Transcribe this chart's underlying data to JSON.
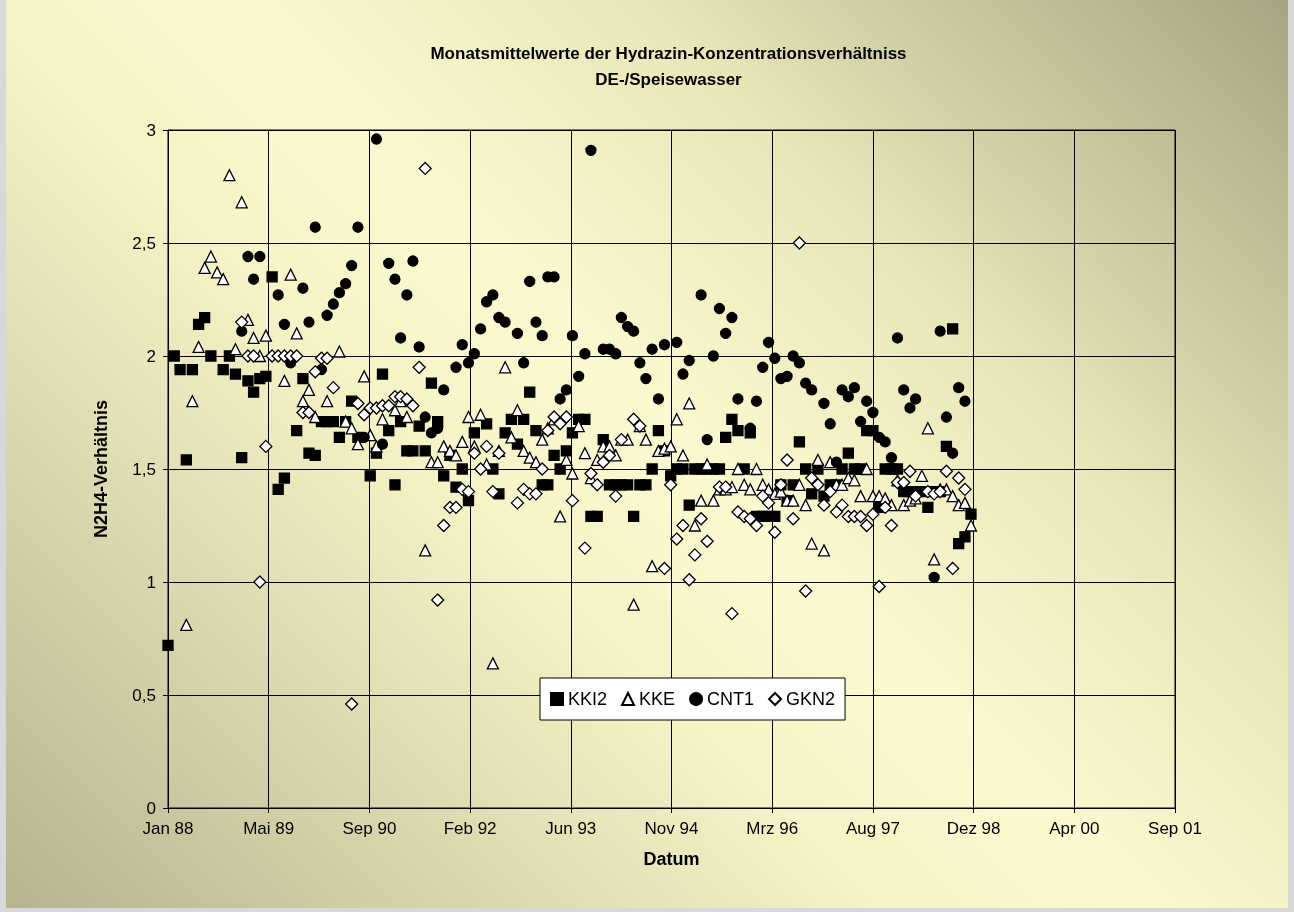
{
  "chart_data": {
    "type": "scatter",
    "title": "Monatsmittelwerte der Hydrazin-Konzentrationsverhältniss",
    "subtitle": "DE-/Speisewasser",
    "xlabel": "Datum",
    "ylabel": "N2H4-Verhältnis",
    "xlim": [
      "1988-01-01",
      "2001-09-09"
    ],
    "xticks": [
      {
        "value": "1988-01-01",
        "label": "Jan 88"
      },
      {
        "value": "1989-05-15",
        "label": "Mai 89"
      },
      {
        "value": "1990-09-27",
        "label": "Sep 90"
      },
      {
        "value": "1992-02-09",
        "label": "Feb 92"
      },
      {
        "value": "1993-06-23",
        "label": "Jun 93"
      },
      {
        "value": "1994-11-05",
        "label": "Nov 94"
      },
      {
        "value": "1996-03-19",
        "label": "Mrz 96"
      },
      {
        "value": "1997-08-01",
        "label": "Aug 97"
      },
      {
        "value": "1998-12-14",
        "label": "Dez 98"
      },
      {
        "value": "2000-04-27",
        "label": "Apr 00"
      },
      {
        "value": "2001-09-09",
        "label": "Sep 01"
      }
    ],
    "ylim": [
      0,
      3
    ],
    "yticks": [
      0,
      {
        "value": 0.5,
        "label": "0,5"
      },
      1,
      {
        "value": 1.5,
        "label": "1,5"
      },
      2,
      {
        "value": 2.5,
        "label": "2,5"
      },
      3
    ],
    "grid": true,
    "legend": "bottom",
    "series": [
      {
        "name": "KKI2",
        "color": "#000000",
        "marker": "square",
        "x": [
          "1988-01",
          "1988-02",
          "1988-03",
          "1988-04",
          "1988-05",
          "1988-06",
          "1988-07",
          "1988-08",
          "1988-10",
          "1988-11",
          "1988-12",
          "1989-01",
          "1989-02",
          "1989-03",
          "1989-04",
          "1989-05",
          "1989-06",
          "1989-07",
          "1989-08",
          "1989-10",
          "1989-11",
          "1989-12",
          "1990-01",
          "1990-02",
          "1990-03",
          "1990-04",
          "1990-05",
          "1990-06",
          "1990-07",
          "1990-08",
          "1990-10",
          "1990-11",
          "1990-12",
          "1991-01",
          "1991-02",
          "1991-03",
          "1991-04",
          "1991-05",
          "1991-06",
          "1991-07",
          "1991-08",
          "1991-09",
          "1991-10",
          "1991-11",
          "1991-12",
          "1992-01",
          "1992-02",
          "1992-03",
          "1992-05",
          "1992-06",
          "1992-07",
          "1992-08",
          "1992-09",
          "1992-10",
          "1992-11",
          "1992-12",
          "1993-01",
          "1993-02",
          "1993-03",
          "1993-04",
          "1993-05",
          "1993-06",
          "1993-07",
          "1993-08",
          "1993-09",
          "1993-10",
          "1993-11",
          "1993-12",
          "1994-01",
          "1994-02",
          "1994-03",
          "1994-04",
          "1994-05",
          "1994-06",
          "1994-07",
          "1994-08",
          "1994-09",
          "1994-10",
          "1994-11",
          "1994-12",
          "1995-01",
          "1995-02",
          "1995-03",
          "1995-04",
          "1995-05",
          "1995-06",
          "1995-07",
          "1995-08",
          "1995-09",
          "1995-10",
          "1995-11",
          "1995-12",
          "1996-01",
          "1996-02",
          "1996-03",
          "1996-04",
          "1996-05",
          "1996-06",
          "1996-07",
          "1996-08",
          "1996-09",
          "1996-10",
          "1996-11",
          "1996-12",
          "1997-01",
          "1997-02",
          "1997-03",
          "1997-04",
          "1997-05",
          "1997-06",
          "1997-07",
          "1997-08",
          "1997-09",
          "1997-10",
          "1997-11",
          "1997-12",
          "1998-01",
          "1998-02",
          "1998-03",
          "1998-04",
          "1998-05",
          "1998-06",
          "1998-07",
          "1998-08",
          "1998-09",
          "1998-10",
          "1998-11",
          "1998-12"
        ],
        "values": [
          0.72,
          2.0,
          1.94,
          1.54,
          1.94,
          2.14,
          2.17,
          2.0,
          1.94,
          2.0,
          1.92,
          1.55,
          1.89,
          1.84,
          1.9,
          1.91,
          2.35,
          1.41,
          1.46,
          1.67,
          1.9,
          1.57,
          1.56,
          1.71,
          1.71,
          1.71,
          1.64,
          1.71,
          1.8,
          1.64,
          1.47,
          1.57,
          1.92,
          1.67,
          1.43,
          1.71,
          1.58,
          1.58,
          1.69,
          1.58,
          1.88,
          1.71,
          1.47,
          1.56,
          1.42,
          1.5,
          1.36,
          1.66,
          1.7,
          1.5,
          1.39,
          1.66,
          1.72,
          1.61,
          1.72,
          1.84,
          1.67,
          1.43,
          1.43,
          1.56,
          1.5,
          1.58,
          1.66,
          1.72,
          1.72,
          1.29,
          1.29,
          1.63,
          1.43,
          1.43,
          1.43,
          1.43,
          1.29,
          1.43,
          1.43,
          1.5,
          1.67,
          1.58,
          1.47,
          1.5,
          1.5,
          1.34,
          1.5,
          1.5,
          1.5,
          1.5,
          1.5,
          1.64,
          1.72,
          1.67,
          1.5,
          1.66,
          1.29,
          1.29,
          1.29,
          1.29,
          1.43,
          1.36,
          1.43,
          1.62,
          1.5,
          1.39,
          1.5,
          1.38,
          1.43,
          1.43,
          1.5,
          1.57,
          1.5,
          1.5,
          1.67,
          1.67,
          1.33,
          1.5,
          1.5,
          1.5,
          1.4,
          1.4,
          1.4,
          1.4,
          1.33,
          1.4,
          1.4,
          1.6,
          2.12,
          1.17,
          1.2,
          1.3
        ]
      },
      {
        "name": "KKE",
        "color": "#ffffff",
        "marker": "triangle",
        "x": [
          "1988-04",
          "1988-05",
          "1988-06",
          "1988-07",
          "1988-08",
          "1988-09",
          "1988-10",
          "1988-11",
          "1988-12",
          "1989-01",
          "1989-02",
          "1989-03",
          "1989-04",
          "1989-05",
          "1989-08",
          "1989-09",
          "1989-10",
          "1989-11",
          "1989-12",
          "1990-01",
          "1990-03",
          "1990-05",
          "1990-06",
          "1990-07",
          "1990-08",
          "1990-09",
          "1990-10",
          "1990-11",
          "1990-12",
          "1991-02",
          "1991-03",
          "1991-04",
          "1991-07",
          "1991-08",
          "1991-09",
          "1991-10",
          "1991-11",
          "1991-12",
          "1992-01",
          "1992-02",
          "1992-03",
          "1992-04",
          "1992-05",
          "1992-06",
          "1992-07",
          "1992-08",
          "1992-09",
          "1992-10",
          "1992-11",
          "1992-12",
          "1993-01",
          "1993-02",
          "1993-03",
          "1993-04",
          "1993-05",
          "1993-06",
          "1993-07",
          "1993-08",
          "1993-09",
          "1993-10",
          "1993-11",
          "1993-12",
          "1994-01",
          "1994-02",
          "1994-03",
          "1994-04",
          "1994-05",
          "1994-06",
          "1994-07",
          "1994-08",
          "1994-09",
          "1994-10",
          "1994-11",
          "1994-12",
          "1995-01",
          "1995-02",
          "1995-03",
          "1995-04",
          "1995-05",
          "1995-06",
          "1995-07",
          "1995-08",
          "1995-09",
          "1995-10",
          "1995-11",
          "1995-12",
          "1996-01",
          "1996-02",
          "1996-03",
          "1996-04",
          "1996-05",
          "1996-06",
          "1996-07",
          "1996-08",
          "1996-09",
          "1996-10",
          "1996-11",
          "1996-12",
          "1997-01",
          "1997-02",
          "1997-03",
          "1997-04",
          "1997-05",
          "1997-06",
          "1997-07",
          "1997-08",
          "1997-09",
          "1997-10",
          "1997-11",
          "1997-12",
          "1998-01",
          "1998-02",
          "1998-03",
          "1998-04",
          "1998-05",
          "1998-06",
          "1998-07",
          "1998-08",
          "1998-09",
          "1998-10",
          "1998-11",
          "1998-12"
        ],
        "values": [
          0.81,
          1.8,
          2.04,
          2.39,
          2.44,
          2.37,
          2.34,
          2.8,
          2.03,
          2.68,
          2.16,
          2.08,
          2.0,
          2.09,
          1.89,
          2.36,
          2.1,
          1.8,
          1.85,
          1.73,
          1.8,
          2.02,
          1.71,
          1.68,
          1.61,
          1.91,
          1.65,
          1.6,
          1.72,
          1.76,
          1.8,
          1.73,
          1.14,
          1.53,
          1.53,
          1.6,
          1.58,
          1.56,
          1.62,
          1.73,
          1.6,
          1.74,
          1.52,
          0.64,
          1.58,
          1.95,
          1.64,
          1.76,
          1.58,
          1.55,
          1.53,
          1.63,
          1.68,
          1.72,
          1.29,
          1.54,
          1.48,
          1.69,
          1.57,
          1.46,
          1.54,
          1.6,
          1.6,
          1.56,
          1.63,
          1.63,
          0.9,
          1.69,
          1.63,
          1.07,
          1.58,
          1.59,
          1.6,
          1.72,
          1.56,
          1.79,
          1.25,
          1.36,
          1.52,
          1.36,
          1.41,
          1.41,
          1.42,
          1.5,
          1.43,
          1.41,
          1.5,
          1.43,
          1.41,
          1.39,
          1.4,
          1.36,
          1.36,
          1.43,
          1.34,
          1.17,
          1.54,
          1.14,
          1.53,
          1.43,
          1.43,
          1.46,
          1.45,
          1.38,
          1.5,
          1.38,
          1.38,
          1.37,
          1.34,
          1.45,
          1.34,
          1.36,
          1.37,
          1.47,
          1.68,
          1.1,
          1.41,
          1.41,
          1.38,
          1.34,
          1.35,
          1.25
        ]
      },
      {
        "name": "CNT1",
        "color": "#000000",
        "marker": "circle",
        "x": [
          "1989-01",
          "1989-02",
          "1989-03",
          "1989-04",
          "1989-07",
          "1989-08",
          "1989-09",
          "1989-11",
          "1989-12",
          "1990-01",
          "1990-02",
          "1990-03",
          "1990-04",
          "1990-05",
          "1990-06",
          "1990-07",
          "1990-08",
          "1990-09",
          "1990-11",
          "1990-12",
          "1991-01",
          "1991-02",
          "1991-03",
          "1991-04",
          "1991-05",
          "1991-06",
          "1991-07",
          "1991-08",
          "1991-09",
          "1991-10",
          "1991-12",
          "1992-01",
          "1992-02",
          "1992-03",
          "1992-04",
          "1992-05",
          "1992-06",
          "1992-07",
          "1992-08",
          "1992-10",
          "1992-11",
          "1992-12",
          "1993-01",
          "1993-02",
          "1993-03",
          "1993-04",
          "1993-05",
          "1993-06",
          "1993-07",
          "1993-08",
          "1993-09",
          "1993-10",
          "1993-12",
          "1994-01",
          "1994-02",
          "1994-03",
          "1994-04",
          "1994-05",
          "1994-06",
          "1994-07",
          "1994-08",
          "1994-09",
          "1994-10",
          "1994-12",
          "1995-01",
          "1995-02",
          "1995-04",
          "1995-05",
          "1995-06",
          "1995-07",
          "1995-08",
          "1995-09",
          "1995-10",
          "1995-12",
          "1996-01",
          "1996-02",
          "1996-03",
          "1996-04",
          "1996-05",
          "1996-06",
          "1996-07",
          "1996-08",
          "1996-09",
          "1996-10",
          "1996-12",
          "1997-01",
          "1997-02",
          "1997-03",
          "1997-04",
          "1997-05",
          "1997-06",
          "1997-07",
          "1997-08",
          "1997-09",
          "1997-10",
          "1997-11",
          "1997-12",
          "1998-01",
          "1998-02",
          "1998-03",
          "1998-06",
          "1998-07",
          "1998-08",
          "1998-09",
          "1998-10",
          "1998-11"
        ],
        "values": [
          2.11,
          2.44,
          2.34,
          2.44,
          2.27,
          2.14,
          1.97,
          2.3,
          2.15,
          2.57,
          1.94,
          2.18,
          2.23,
          2.28,
          2.32,
          2.4,
          2.57,
          1.64,
          2.96,
          1.61,
          2.41,
          2.34,
          2.08,
          2.27,
          2.42,
          2.04,
          1.73,
          1.66,
          1.68,
          1.85,
          1.95,
          2.05,
          1.97,
          2.01,
          2.12,
          2.24,
          2.27,
          2.17,
          2.15,
          2.1,
          1.97,
          2.33,
          2.15,
          2.09,
          2.35,
          2.35,
          1.81,
          1.85,
          2.09,
          1.91,
          2.01,
          2.91,
          2.03,
          2.03,
          2.01,
          2.17,
          2.13,
          2.11,
          1.97,
          1.9,
          2.03,
          1.81,
          2.05,
          2.06,
          1.92,
          1.98,
          2.27,
          1.63,
          2.0,
          2.21,
          2.1,
          2.17,
          1.81,
          1.68,
          1.8,
          1.95,
          2.06,
          1.99,
          1.9,
          1.91,
          2.0,
          1.97,
          1.88,
          1.85,
          1.79,
          1.7,
          1.53,
          1.85,
          1.82,
          1.86,
          1.71,
          1.8,
          1.75,
          1.64,
          1.62,
          1.55,
          2.08,
          1.85,
          1.77,
          1.81,
          1.02,
          2.11,
          1.73,
          1.57,
          1.86,
          1.8
        ]
      },
      {
        "name": "GKN2",
        "color": "#ffffff",
        "marker": "diamond",
        "x": [
          "1989-01",
          "1989-02",
          "1989-03",
          "1989-04",
          "1989-05",
          "1989-06",
          "1989-07",
          "1989-08",
          "1989-09",
          "1989-10",
          "1989-11",
          "1989-12",
          "1990-01",
          "1990-02",
          "1990-03",
          "1990-04",
          "1990-07",
          "1990-08",
          "1990-09",
          "1990-10",
          "1990-11",
          "1990-12",
          "1991-01",
          "1991-02",
          "1991-03",
          "1991-04",
          "1991-05",
          "1991-06",
          "1991-07",
          "1991-09",
          "1991-10",
          "1991-11",
          "1991-12",
          "1992-01",
          "1992-02",
          "1992-03",
          "1992-04",
          "1992-05",
          "1992-06",
          "1992-07",
          "1992-10",
          "1992-11",
          "1992-12",
          "1993-01",
          "1993-02",
          "1993-03",
          "1993-04",
          "1993-05",
          "1993-06",
          "1993-07",
          "1993-09",
          "1993-10",
          "1993-11",
          "1993-12",
          "1994-01",
          "1994-02",
          "1994-03",
          "1994-05",
          "1994-06",
          "1994-10",
          "1994-11",
          "1994-12",
          "1995-01",
          "1995-02",
          "1995-03",
          "1995-04",
          "1995-05",
          "1995-07",
          "1995-08",
          "1995-09",
          "1995-10",
          "1995-11",
          "1995-12",
          "1996-01",
          "1996-02",
          "1996-03",
          "1996-04",
          "1996-05",
          "1996-06",
          "1996-07",
          "1996-08",
          "1996-09",
          "1996-10",
          "1996-11",
          "1996-12",
          "1997-01",
          "1997-02",
          "1997-03",
          "1997-04",
          "1997-05",
          "1997-06",
          "1997-07",
          "1997-08",
          "1997-09",
          "1997-10",
          "1997-11",
          "1997-12",
          "1998-01",
          "1998-02",
          "1998-03",
          "1998-05",
          "1998-06",
          "1998-07",
          "1998-08",
          "1998-09",
          "1998-10",
          "1998-11"
        ],
        "values": [
          2.15,
          2.0,
          2.0,
          1.0,
          1.6,
          2.0,
          2.0,
          2.0,
          2.0,
          2.0,
          1.75,
          1.75,
          1.93,
          1.99,
          1.99,
          1.86,
          0.46,
          1.79,
          1.74,
          1.77,
          1.77,
          1.78,
          1.78,
          1.82,
          1.82,
          1.81,
          1.78,
          1.95,
          2.83,
          0.92,
          1.25,
          1.33,
          1.33,
          1.41,
          1.4,
          1.57,
          1.5,
          1.6,
          1.4,
          1.57,
          1.35,
          1.41,
          1.39,
          1.39,
          1.5,
          1.67,
          1.73,
          1.7,
          1.73,
          1.36,
          1.15,
          1.48,
          1.43,
          1.53,
          1.56,
          1.38,
          1.63,
          1.72,
          1.69,
          1.06,
          1.43,
          1.19,
          1.25,
          1.01,
          1.12,
          1.28,
          1.18,
          1.42,
          1.42,
          0.86,
          1.31,
          1.29,
          1.28,
          1.25,
          1.38,
          1.35,
          1.22,
          1.43,
          1.54,
          1.28,
          2.5,
          0.96,
          1.46,
          1.43,
          1.34,
          1.4,
          1.31,
          1.34,
          1.29,
          1.29,
          1.29,
          1.25,
          1.3,
          0.98,
          1.33,
          1.25,
          1.44,
          1.44,
          1.49,
          1.38,
          1.4,
          1.39,
          1.4,
          1.49,
          1.06,
          1.46,
          1.41
        ]
      }
    ]
  }
}
